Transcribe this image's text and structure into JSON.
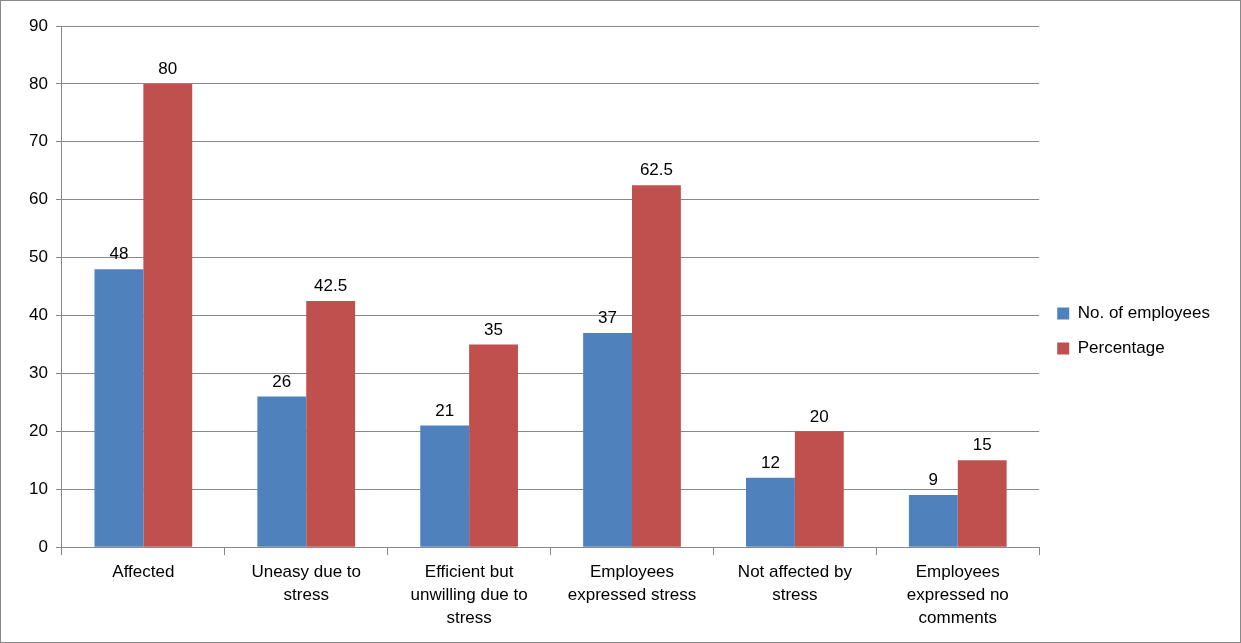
{
  "chart_data": {
    "type": "bar",
    "categories": [
      "Affected",
      "Uneasy due to stress",
      "Efficient but unwilling due to stress",
      "Employees expressed stress",
      "Not affected by stress",
      "Employees expressed no comments"
    ],
    "series": [
      {
        "name": "No. of employees",
        "color": "#4f81bd",
        "values": [
          48,
          26,
          21,
          37,
          12,
          9
        ]
      },
      {
        "name": "Percentage",
        "color": "#c0504d",
        "values": [
          80,
          42.5,
          35,
          62.5,
          20,
          15
        ]
      }
    ],
    "ylim": [
      0,
      90
    ],
    "yticks": [
      0,
      10,
      20,
      30,
      40,
      50,
      60,
      70,
      80,
      90
    ],
    "grid": "y",
    "legend": "right",
    "data_labels": true
  }
}
